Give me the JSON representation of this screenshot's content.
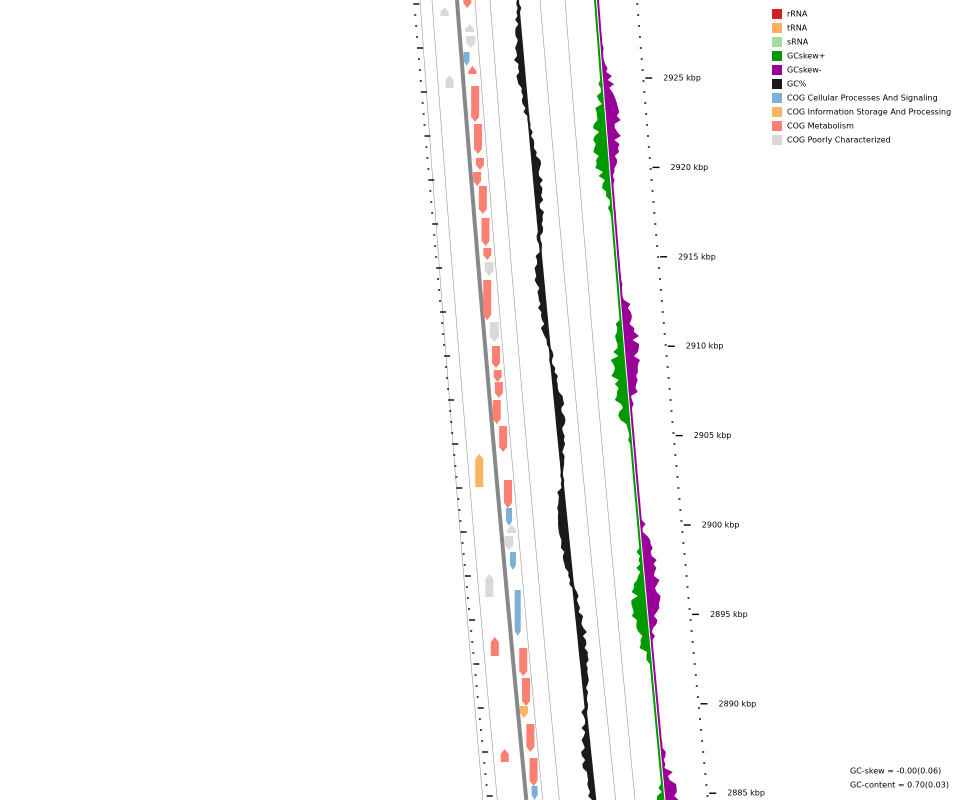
{
  "legend": [
    {
      "label": "rRNA",
      "color": "#d42020"
    },
    {
      "label": "tRNA",
      "color": "#fdae61"
    },
    {
      "label": "sRNA",
      "color": "#a6dba0"
    },
    {
      "label": "GCskew+",
      "color": "#009900"
    },
    {
      "label": "GCskew-",
      "color": "#990099"
    },
    {
      "label": "GC%",
      "color": "#1a1a1a"
    },
    {
      "label": "COG Cellular Processes And Signaling",
      "color": "#7fb0d5"
    },
    {
      "label": "COG Information Storage And Processing",
      "color": "#fdb462"
    },
    {
      "label": "COG Metabolism",
      "color": "#fb8072"
    },
    {
      "label": "COG Poorly Characterized",
      "color": "#d9d9d9"
    }
  ],
  "ruler": {
    "ticks": [
      "2925 kbp",
      "2920 kbp",
      "2915 kbp",
      "2910 kbp",
      "2905 kbp",
      "2900 kbp",
      "2895 kbp",
      "2890 kbp",
      "2885 kbp"
    ]
  },
  "stats": [
    "GC-skew = -0.00(0.06)",
    "GC-content = 0.70(0.03)"
  ]
}
